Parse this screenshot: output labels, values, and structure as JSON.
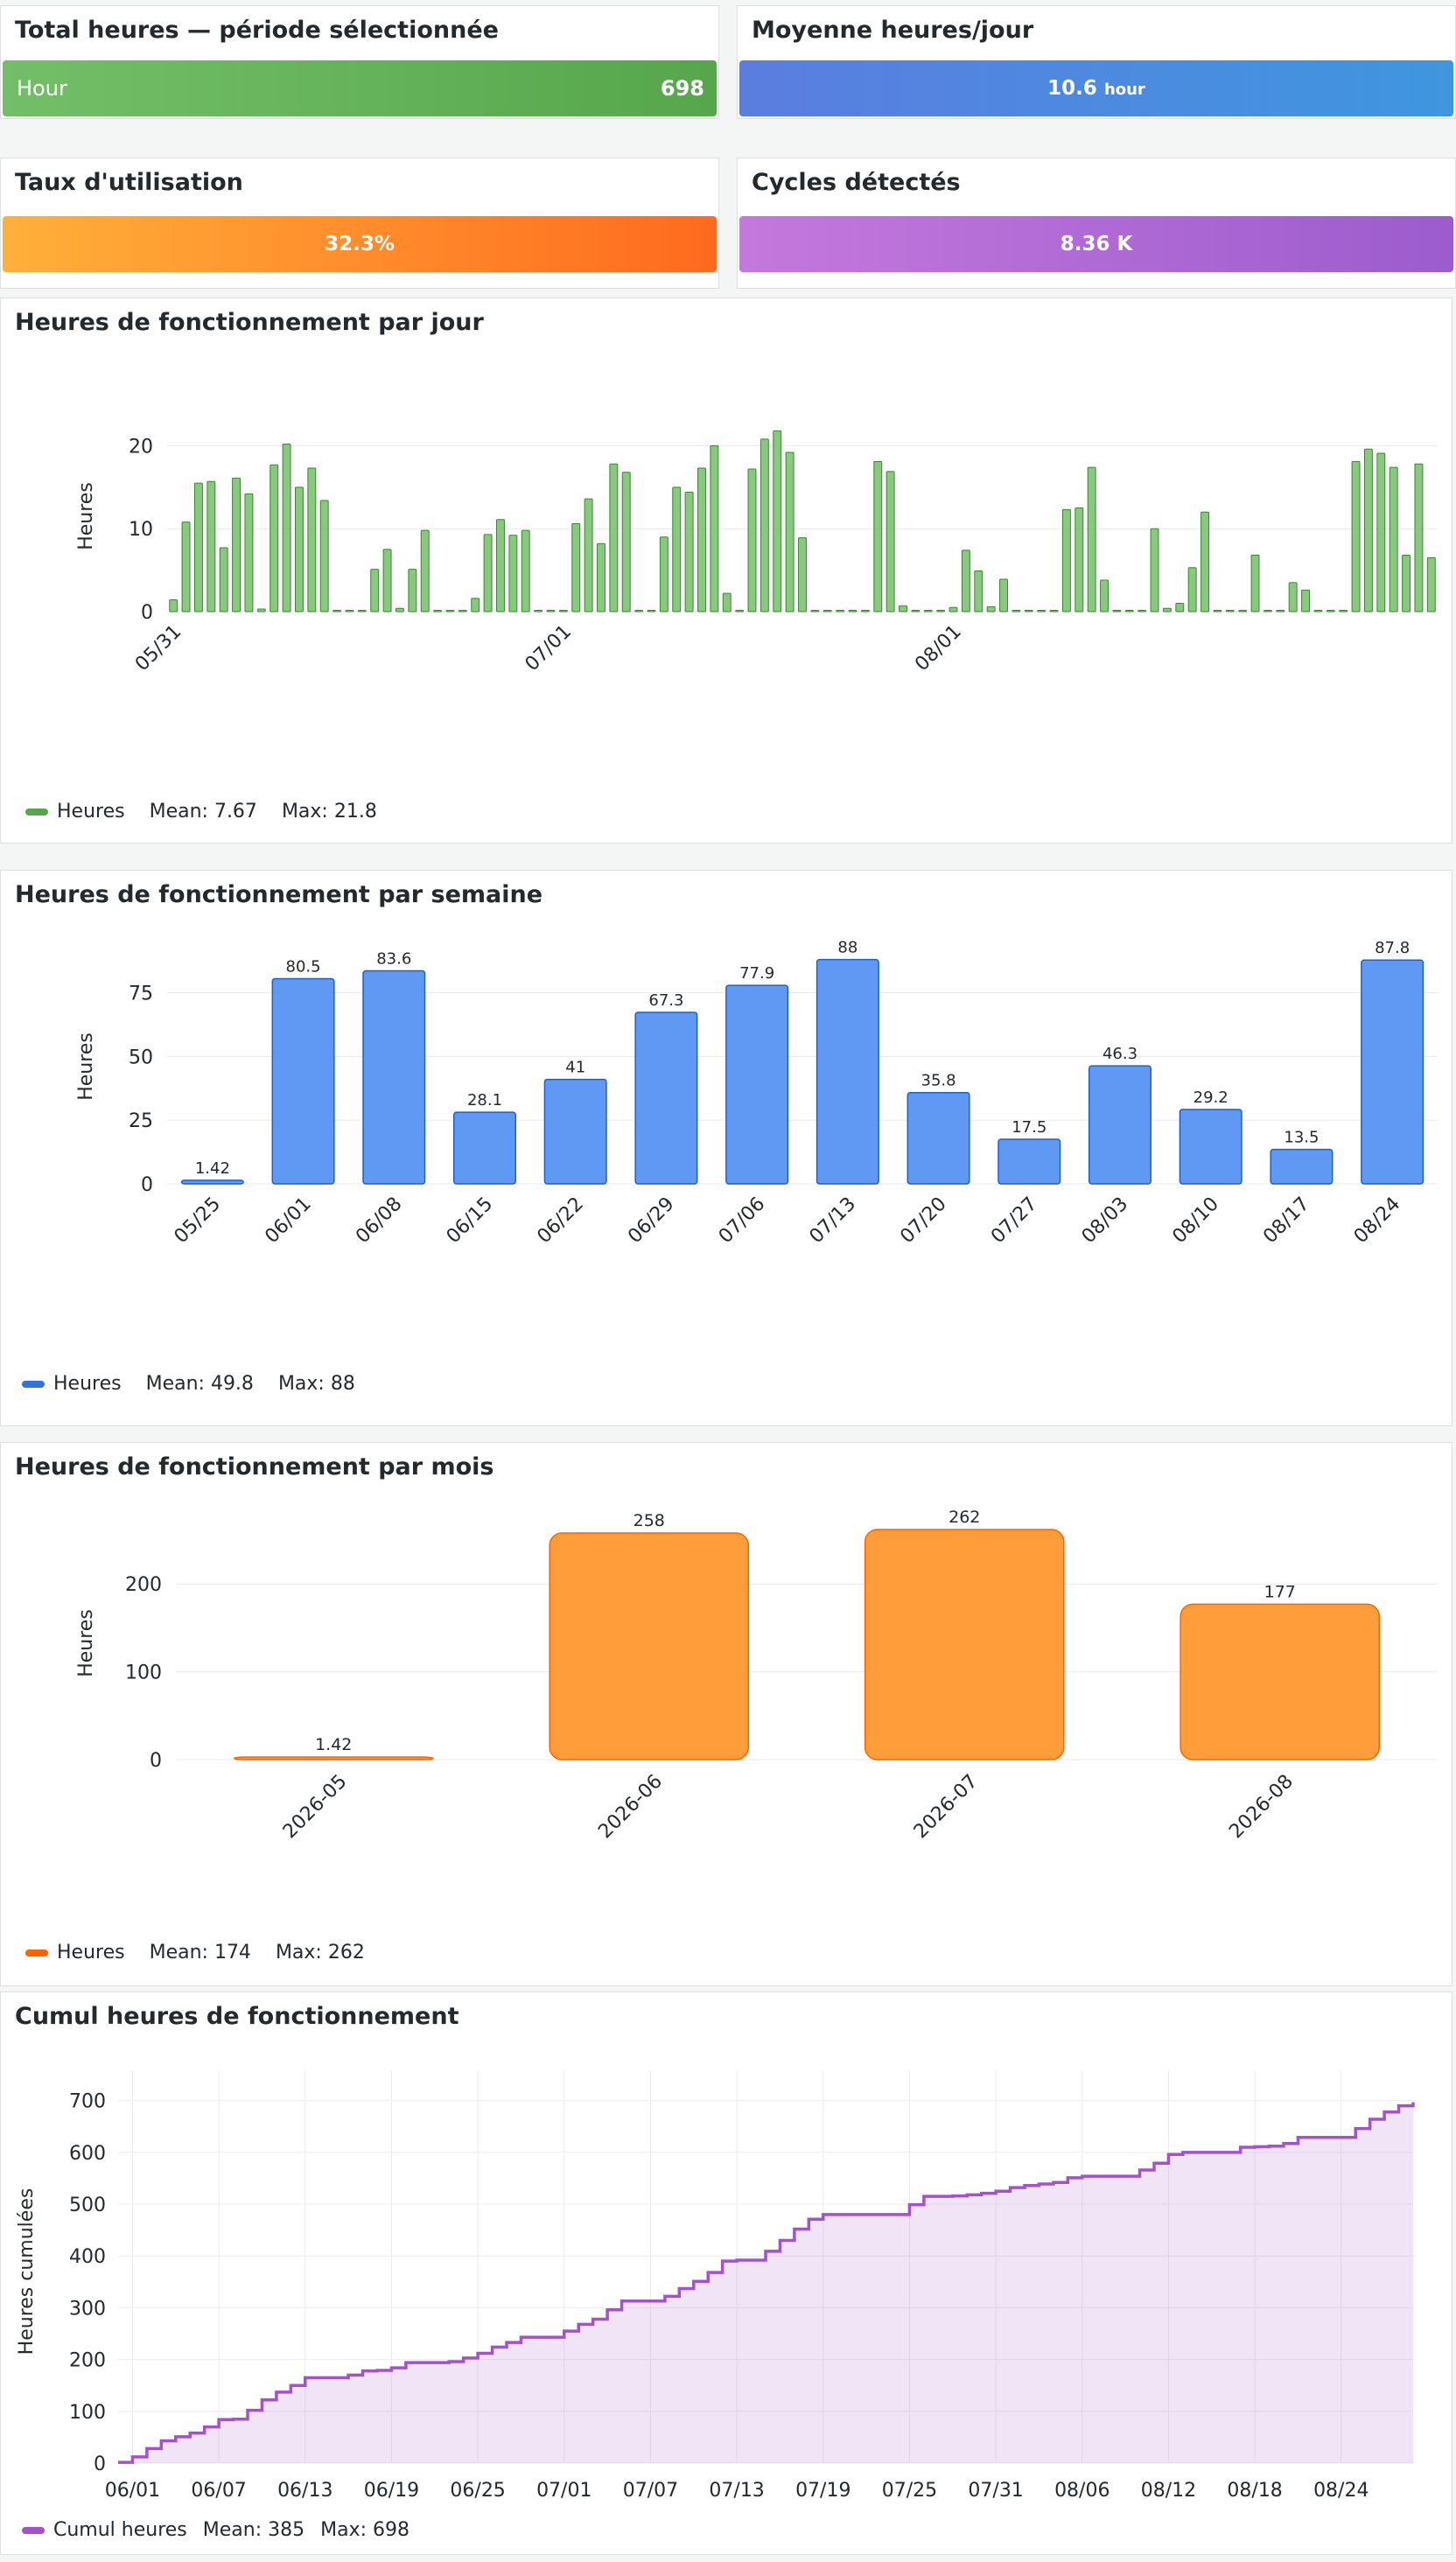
{
  "stats": [
    {
      "title": "Total heures — période sélectionnée",
      "label": "Hour",
      "value": "698",
      "color_from": "#73bf69",
      "color_to": "#56a64b"
    },
    {
      "title": "Moyenne heures/jour",
      "value": "10.6",
      "unit": "hour",
      "color_from": "#5b7de0",
      "color_to": "#3f96df"
    },
    {
      "title": "Taux d'utilisation",
      "value": "32.3%",
      "color_from": "#ffb03a",
      "color_to": "#ff6a1e"
    },
    {
      "title": "Cycles détectés",
      "value": "8.36 K",
      "color_from": "#c478dd",
      "color_to": "#9c5ccd"
    }
  ],
  "chart_data": [
    {
      "type": "bar",
      "title": "Heures de fonctionnement par jour",
      "ylabel": "Heures",
      "ylim": [
        0,
        23
      ],
      "yticks": [
        0,
        10,
        20
      ],
      "color": "#73bf69",
      "stroke": "#37872d",
      "xtick_labels": [
        {
          "index": 0,
          "label": "05/31"
        },
        {
          "index": 31,
          "label": "07/01"
        },
        {
          "index": 62,
          "label": "08/01"
        }
      ],
      "values": [
        1.42,
        10.8,
        15.5,
        15.7,
        7.7,
        16.1,
        14.2,
        0.2,
        17.7,
        20.2,
        15,
        17.3,
        13.4,
        0,
        0,
        0,
        5.1,
        7.5,
        0.4,
        5.1,
        9.8,
        0,
        0,
        0,
        1.6,
        9.3,
        11.1,
        9.2,
        9.8,
        0,
        0,
        0,
        10.6,
        13.6,
        8.2,
        17.8,
        16.8,
        0,
        0,
        9,
        15,
        14.4,
        17.3,
        20,
        2.2,
        0,
        17.2,
        20.8,
        21.8,
        19.2,
        8.9,
        0,
        0,
        0,
        0,
        0,
        18.1,
        16.9,
        0.7,
        0,
        0,
        0,
        0.5,
        7.4,
        4.9,
        0.6,
        3.9,
        0,
        0,
        0,
        0,
        12.3,
        12.5,
        17.4,
        3.8,
        0,
        0,
        0,
        10,
        0.4,
        1,
        5.3,
        12,
        0,
        0,
        0,
        6.8,
        0,
        0,
        3.5,
        2.6,
        0,
        0,
        0,
        18.1,
        19.6,
        19.1,
        17.4,
        6.8,
        17.8,
        6.5
      ],
      "legend": {
        "name": "Heures",
        "mean": "Mean: 7.67",
        "max": "Max: 21.8"
      }
    },
    {
      "type": "bar",
      "title": "Heures de fonctionnement par semaine",
      "ylabel": "Heures",
      "ylim": [
        0,
        92
      ],
      "yticks": [
        0,
        25,
        50,
        75
      ],
      "color": "#5794f2",
      "stroke": "#1f60c4",
      "categories": [
        "05/25",
        "06/01",
        "06/08",
        "06/15",
        "06/22",
        "06/29",
        "07/06",
        "07/13",
        "07/20",
        "07/27",
        "08/03",
        "08/10",
        "08/17",
        "08/24"
      ],
      "values": [
        1.42,
        80.5,
        83.6,
        28.1,
        41,
        67.3,
        77.9,
        88,
        35.8,
        17.5,
        46.3,
        29.2,
        13.5,
        87.8
      ],
      "data_labels": [
        "1.42",
        "80.5",
        "83.6",
        "28.1",
        "41",
        "67.3",
        "77.9",
        "88",
        "35.8",
        "17.5",
        "46.3",
        "29.2",
        "13.5",
        "87.8"
      ],
      "legend": {
        "name": "Heures",
        "mean": "Mean: 49.8",
        "max": "Max: 88"
      }
    },
    {
      "type": "bar",
      "title": "Heures de fonctionnement par mois",
      "ylabel": "Heures",
      "ylim": [
        0,
        265
      ],
      "yticks": [
        0,
        100,
        200
      ],
      "color": "#ff9830",
      "stroke": "#fa6400",
      "categories": [
        "2026-05",
        "2026-06",
        "2026-07",
        "2026-08"
      ],
      "values": [
        1.42,
        258,
        262,
        177
      ],
      "data_labels": [
        "1.42",
        "258",
        "262",
        "177"
      ],
      "legend": {
        "name": "Heures",
        "mean": "Mean: 174",
        "max": "Max: 262"
      }
    },
    {
      "type": "area",
      "title": "Cumul heures de fonctionnement",
      "ylabel": "Heures cumulées",
      "ylim": [
        0,
        740
      ],
      "yticks": [
        0,
        100,
        200,
        300,
        400,
        500,
        600,
        700
      ],
      "color": "#b877d9",
      "xticks": [
        {
          "day": 1,
          "label": "06/01"
        },
        {
          "day": 7,
          "label": "06/07"
        },
        {
          "day": 13,
          "label": "06/13"
        },
        {
          "day": 19,
          "label": "06/19"
        },
        {
          "day": 25,
          "label": "06/25"
        },
        {
          "day": 31,
          "label": "07/01"
        },
        {
          "day": 37,
          "label": "07/07"
        },
        {
          "day": 43,
          "label": "07/13"
        },
        {
          "day": 49,
          "label": "07/19"
        },
        {
          "day": 55,
          "label": "07/25"
        },
        {
          "day": 61,
          "label": "07/31"
        },
        {
          "day": 67,
          "label": "08/06"
        },
        {
          "day": 73,
          "label": "08/12"
        },
        {
          "day": 79,
          "label": "08/18"
        },
        {
          "day": 85,
          "label": "08/24"
        }
      ],
      "x": [
        0,
        1,
        2,
        3,
        4,
        5,
        6,
        7,
        8,
        9,
        10,
        11,
        12,
        13,
        14,
        15,
        16,
        17,
        18,
        19,
        20,
        21,
        22,
        23,
        24,
        25,
        26,
        27,
        28,
        29,
        30,
        31,
        32,
        33,
        34,
        35,
        36,
        37,
        38,
        39,
        40,
        41,
        42,
        43,
        44,
        45,
        46,
        47,
        48,
        49,
        50,
        51,
        52,
        53,
        54,
        55,
        56,
        57,
        58,
        59,
        60,
        61,
        62,
        63,
        64,
        65,
        66,
        67,
        68,
        69,
        70,
        71,
        72,
        73,
        74,
        75,
        76,
        77,
        78,
        79,
        80,
        81,
        82,
        83,
        84,
        85,
        86,
        87,
        88,
        89,
        90
      ],
      "values": [
        1.4,
        12,
        28,
        43,
        51,
        58,
        70,
        84,
        85,
        102,
        122,
        137,
        150,
        165,
        165,
        165,
        170,
        178,
        179,
        184,
        194,
        194,
        194,
        196,
        203,
        212,
        224,
        233,
        243,
        243,
        243,
        255,
        268,
        278,
        296,
        313,
        313,
        313,
        322,
        337,
        351,
        368,
        390,
        392,
        392,
        409,
        430,
        452,
        471,
        480,
        480,
        480,
        480,
        480,
        480,
        499,
        515,
        515,
        516,
        518,
        521,
        525,
        532,
        536,
        539,
        542,
        551,
        554,
        554,
        554,
        554,
        566,
        579,
        596,
        600,
        600,
        600,
        600,
        610,
        611,
        612,
        617,
        629,
        629,
        629,
        629,
        646,
        664,
        678,
        690,
        697
      ],
      "legend": {
        "name": "Cumul heures",
        "mean": "Mean: 385",
        "max": "Max: 698"
      }
    }
  ]
}
